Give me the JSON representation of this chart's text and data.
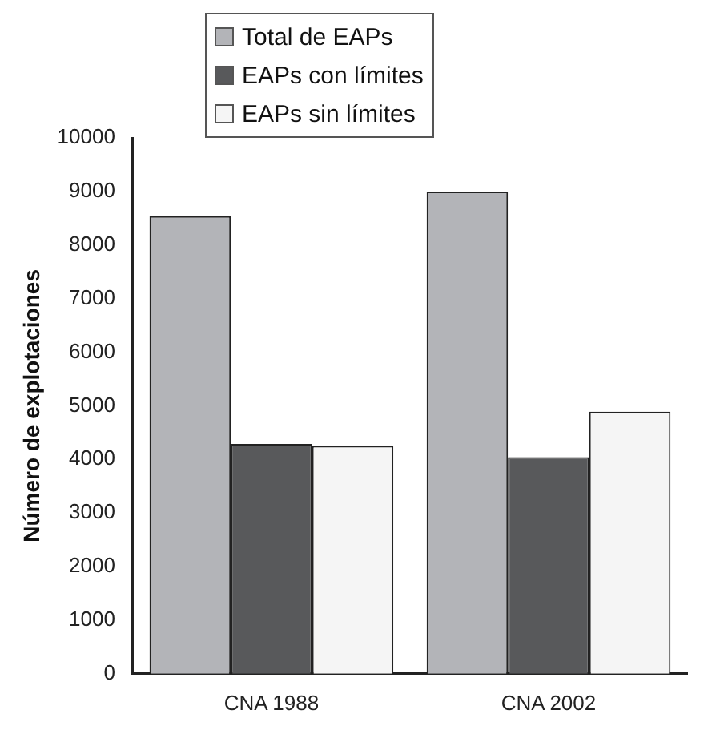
{
  "chart_data": {
    "type": "bar",
    "ylabel": "Número de explotaciones",
    "categories": [
      "CNA 1988",
      "CNA 2002"
    ],
    "series": [
      {
        "name": "Total de EAPs",
        "color": "#b3b4b8",
        "values": [
          8540,
          9000
        ]
      },
      {
        "name": "EAPs con límites",
        "color": "#58595b",
        "values": [
          4290,
          4040
        ]
      },
      {
        "name": "EAPs sin límites",
        "color": "#f5f5f5",
        "values": [
          4250,
          4890
        ]
      }
    ],
    "ylim": [
      0,
      10000
    ],
    "yticks": [
      0,
      1000,
      2000,
      3000,
      4000,
      5000,
      6000,
      7000,
      8000,
      9000,
      10000
    ],
    "grid": false,
    "legend": "top"
  }
}
